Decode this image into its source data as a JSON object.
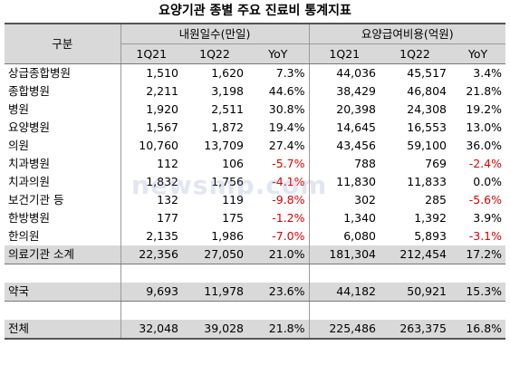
{
  "title": "요양기관 종별 주요 진료비 통계지표",
  "headers": {
    "category": "구분",
    "group1": "내원일수(만일)",
    "group2": "요양급여비용(억원)",
    "sub": [
      "1Q21",
      "1Q22",
      "YoY",
      "1Q21",
      "1Q22",
      "YoY"
    ]
  },
  "rows": [
    {
      "label": "상급종합병원",
      "v": [
        "1,510",
        "1,620",
        "7.3%",
        "44,036",
        "45,517",
        "3.4%"
      ]
    },
    {
      "label": "종합병원",
      "v": [
        "2,211",
        "3,198",
        "44.6%",
        "38,429",
        "46,804",
        "21.8%"
      ]
    },
    {
      "label": "병원",
      "v": [
        "1,920",
        "2,511",
        "30.8%",
        "20,398",
        "24,308",
        "19.2%"
      ]
    },
    {
      "label": "요양병원",
      "v": [
        "1,567",
        "1,872",
        "19.4%",
        "14,645",
        "16,553",
        "13.0%"
      ]
    },
    {
      "label": "의원",
      "v": [
        "10,760",
        "13,709",
        "27.4%",
        "43,456",
        "59,100",
        "36.0%"
      ]
    },
    {
      "label": "치과병원",
      "v": [
        "112",
        "106",
        "-5.7%",
        "788",
        "769",
        "-2.4%"
      ]
    },
    {
      "label": "치과의원",
      "v": [
        "1,832",
        "1,756",
        "-4.1%",
        "11,830",
        "11,833",
        "0.0%"
      ]
    },
    {
      "label": "보건기관 등",
      "v": [
        "132",
        "119",
        "-9.8%",
        "302",
        "285",
        "-5.6%"
      ]
    },
    {
      "label": "한방병원",
      "v": [
        "177",
        "175",
        "-1.2%",
        "1,340",
        "1,392",
        "3.9%"
      ]
    },
    {
      "label": "한의원",
      "v": [
        "2,135",
        "1,986",
        "-7.0%",
        "6,080",
        "5,893",
        "-3.1%"
      ]
    }
  ],
  "subtotal": {
    "label": "의료기관 소계",
    "v": [
      "22,356",
      "27,050",
      "21.0%",
      "181,304",
      "212,454",
      "17.2%"
    ]
  },
  "pharmacy": {
    "label": "약국",
    "v": [
      "9,693",
      "11,978",
      "23.6%",
      "44,182",
      "50,921",
      "15.3%"
    ]
  },
  "total": {
    "label": "전체",
    "v": [
      "32,048",
      "39,028",
      "21.8%",
      "225,486",
      "263,375",
      "16.8%"
    ]
  },
  "watermark": "newsmp.com",
  "colors": {
    "header_bg": "#d9d9d9",
    "negative": "#e00000"
  }
}
